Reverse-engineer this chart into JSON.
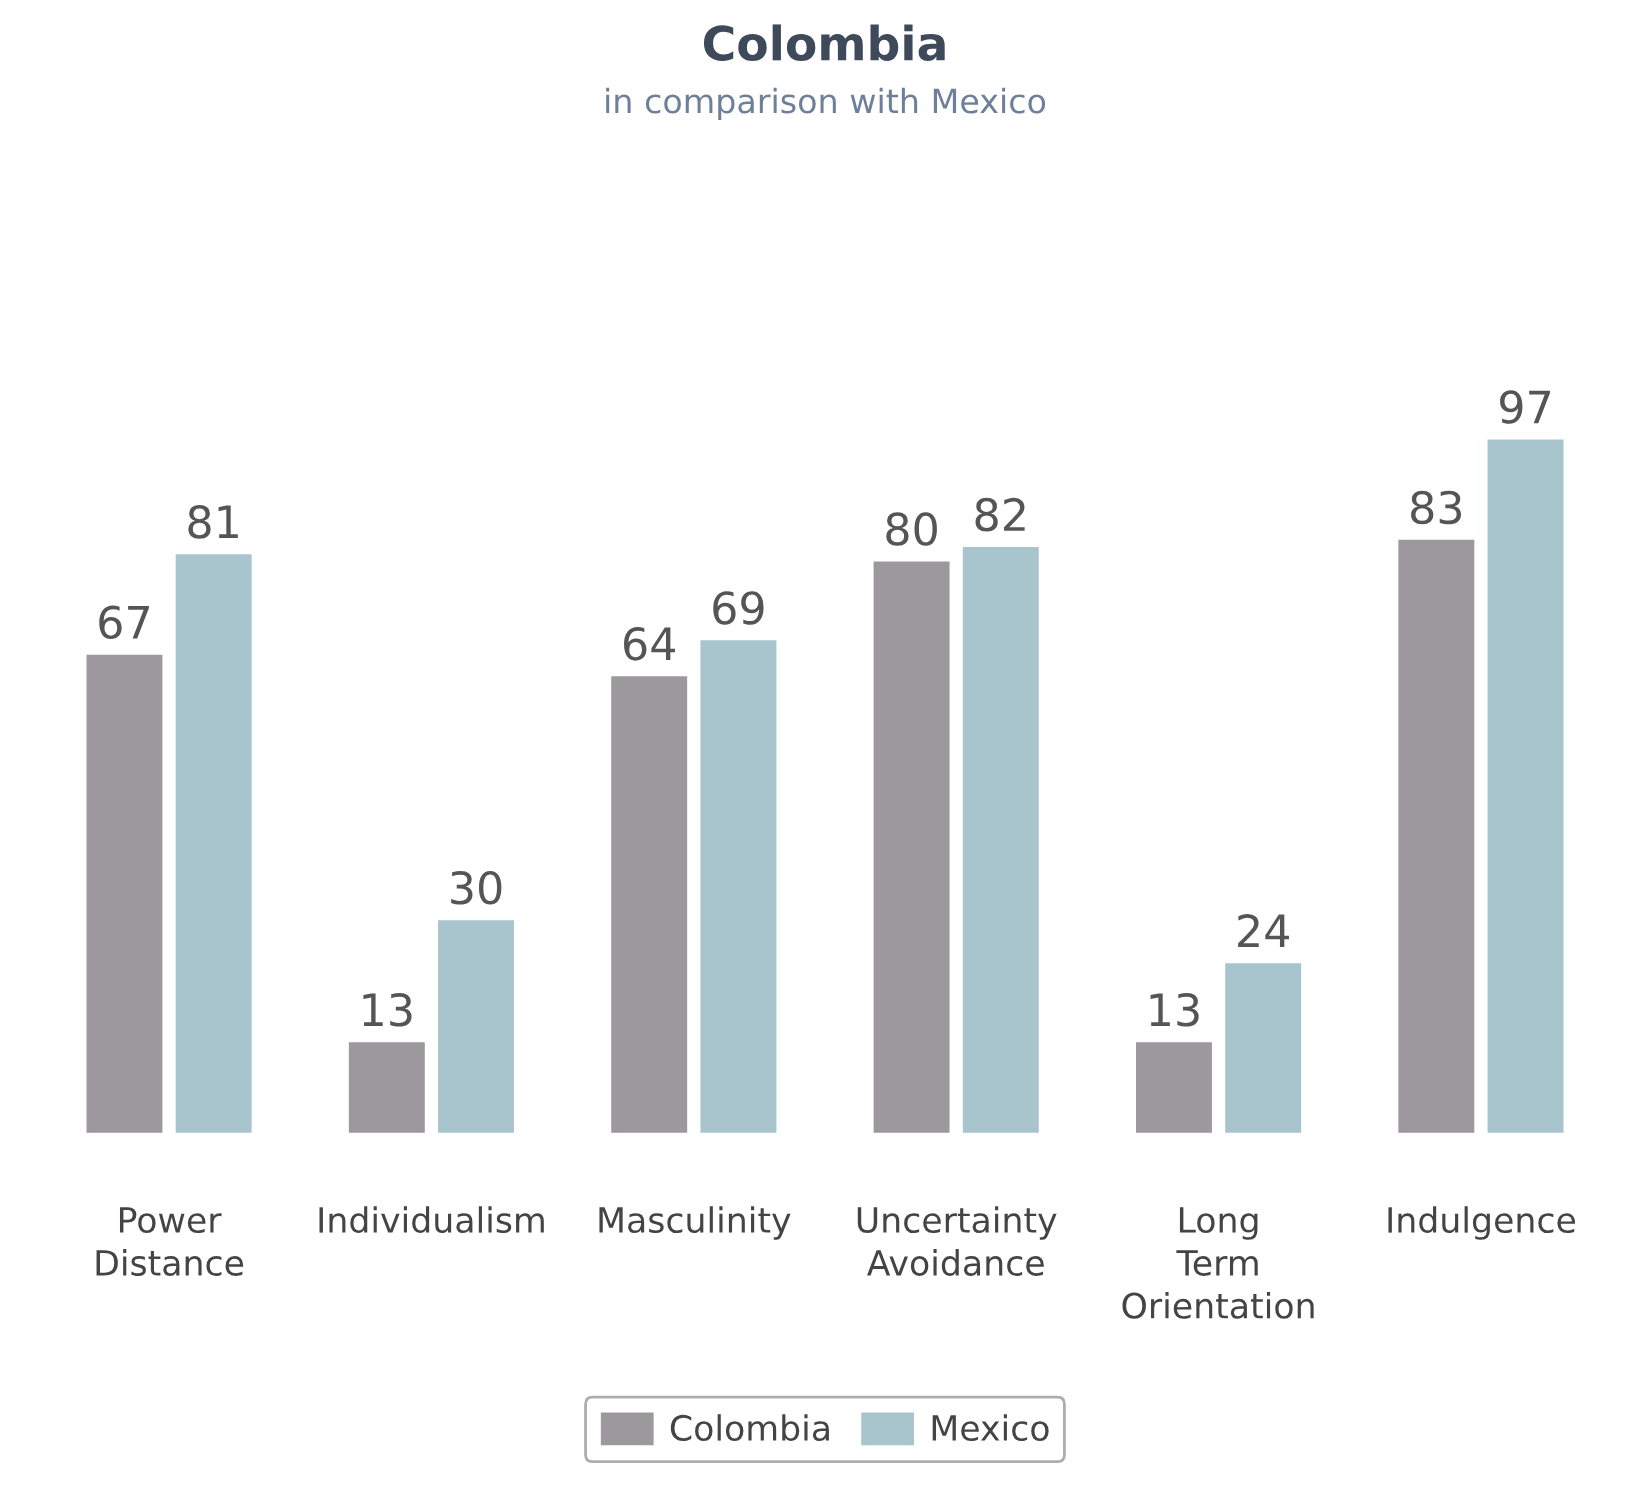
{
  "chart_data": {
    "type": "bar",
    "title": "Colombia",
    "subtitle": "in comparison with Mexico",
    "categories": [
      "Power\nDistance",
      "Individualism",
      "Masculinity",
      "Uncertainty\nAvoidance",
      "Long\nTerm\nOrientation",
      "Indulgence"
    ],
    "series": [
      {
        "name": "Colombia",
        "color": "#9b999c",
        "values": [
          67,
          13,
          64,
          80,
          13,
          83
        ]
      },
      {
        "name": "Mexico",
        "color": "#a8c4cc",
        "values": [
          81,
          30,
          69,
          82,
          24,
          97
        ]
      }
    ],
    "data_labels": true,
    "legend": "bottom",
    "grid": false
  }
}
